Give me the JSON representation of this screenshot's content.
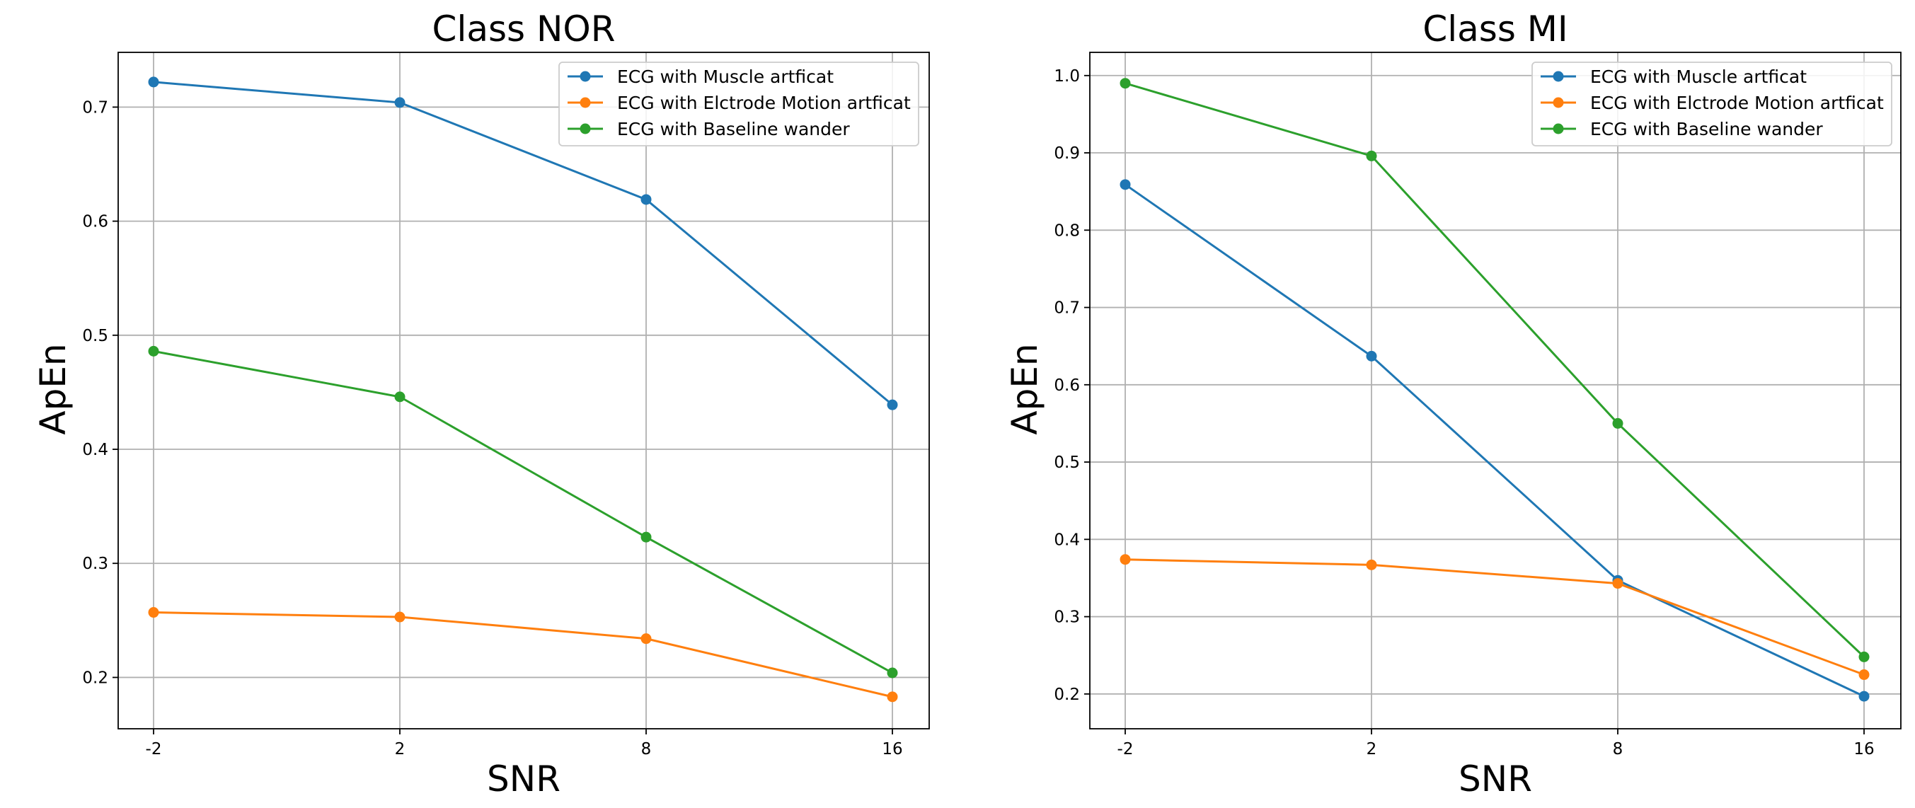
{
  "colors": {
    "muscle": "#1f77b4",
    "electrode": "#ff7f0e",
    "baseline": "#2ca02c",
    "grid": "#b0b0b0",
    "axis": "#000000"
  },
  "chart_data": [
    {
      "type": "line",
      "title": "Class NOR",
      "xlabel": "SNR",
      "ylabel": "ApEn",
      "categories": [
        "-2",
        "2",
        "8",
        "16"
      ],
      "yticks": [
        "0.2",
        "0.3",
        "0.4",
        "0.5",
        "0.6",
        "0.7"
      ],
      "ylim": [
        0.155,
        0.748
      ],
      "grid": true,
      "legend_position": "top-right",
      "series": [
        {
          "name": "ECG with Muscle artficat",
          "color_key": "muscle",
          "values": [
            0.722,
            0.704,
            0.619,
            0.439
          ]
        },
        {
          "name": "ECG with Elctrode Motion artficat",
          "color_key": "electrode",
          "values": [
            0.257,
            0.253,
            0.234,
            0.183
          ]
        },
        {
          "name": "ECG with Baseline wander",
          "color_key": "baseline",
          "values": [
            0.486,
            0.446,
            0.323,
            0.204
          ]
        }
      ]
    },
    {
      "type": "line",
      "title": "Class MI",
      "xlabel": "SNR",
      "ylabel": "ApEn",
      "categories": [
        "-2",
        "2",
        "8",
        "16"
      ],
      "yticks": [
        "0.2",
        "0.3",
        "0.4",
        "0.5",
        "0.6",
        "0.7",
        "0.8",
        "0.9",
        "1.0"
      ],
      "ylim": [
        0.155,
        1.03
      ],
      "grid": true,
      "legend_position": "top-right",
      "series": [
        {
          "name": "ECG with Muscle artficat",
          "color_key": "muscle",
          "values": [
            0.859,
            0.637,
            0.347,
            0.197
          ]
        },
        {
          "name": "ECG with Elctrode Motion artficat",
          "color_key": "electrode",
          "values": [
            0.374,
            0.367,
            0.343,
            0.225
          ]
        },
        {
          "name": "ECG with Baseline wander",
          "color_key": "baseline",
          "values": [
            0.99,
            0.896,
            0.55,
            0.248
          ]
        }
      ]
    }
  ]
}
